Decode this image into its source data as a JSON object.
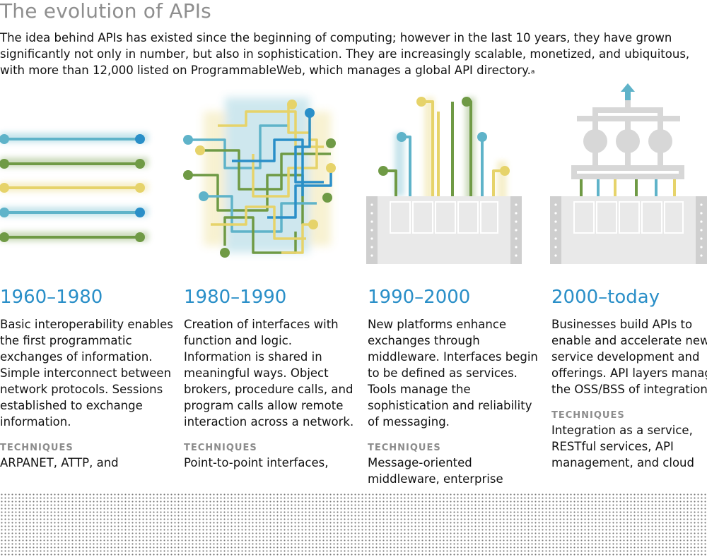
{
  "header": {
    "title": "The evolution of APIs",
    "intro": "The idea behind APIs has existed since the beginning of computing; however in the last 10 years, they have grown significantly not only in number, but also in sophistication. They are increasingly scalable, monetized, and ubiquitous, with more than 12,000 listed on ProgrammableWeb, which manages a global API directory.",
    "footnote_marker": "a"
  },
  "colors": {
    "blue": "#2a8fc8",
    "teal": "#5fb3c9",
    "green": "#6f9a45",
    "yellow": "#e6d36a",
    "gray": "#d7d7d7"
  },
  "eras": [
    {
      "year": "1960–1980",
      "description": "Basic interoperability enables the first programmatic exchanges of information. Simple interconnect between network protocols. Sessions established to exchange information.",
      "techniques_label": "TECHNIQUES",
      "techniques": "ARPANET, ATTP, and"
    },
    {
      "year": "1980–1990",
      "description": "Creation of interfaces with function and logic. Information is shared in meaningful ways. Object brokers, procedure calls, and program calls allow remote interaction across a network.",
      "techniques_label": "TECHNIQUES",
      "techniques": "Point-to-point interfaces,"
    },
    {
      "year": "1990–2000",
      "description": "New platforms enhance exchanges through middleware. Interfaces begin to be defined as services. Tools manage the sophistication and reliability of messaging.",
      "techniques_label": "TECHNIQUES",
      "techniques": "Message-oriented middleware, enterprise"
    },
    {
      "year": "2000–today",
      "description": "Businesses build APIs to enable and accelerate new service development and offerings. API layers manage the OSS/BSS of integration.",
      "techniques_label": "TECHNIQUES",
      "techniques": "Integration as a service, RESTful services, API management, and cloud"
    }
  ]
}
